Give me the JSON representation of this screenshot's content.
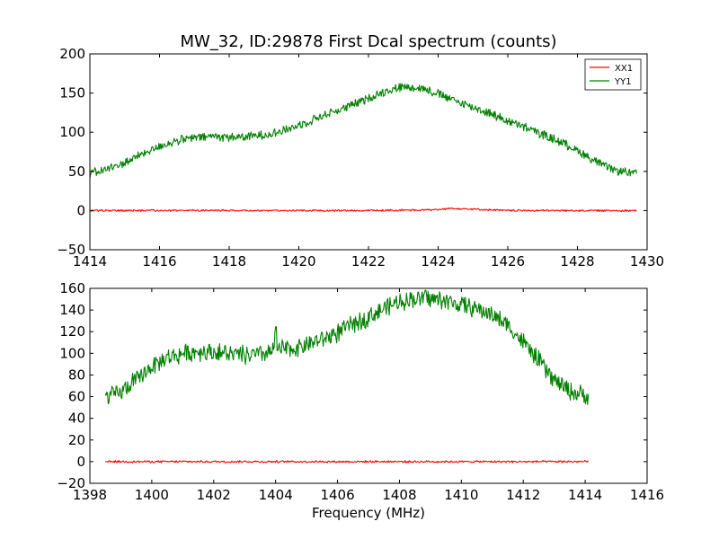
{
  "chart_data": [
    {
      "type": "line",
      "title": "MW_32, ID:29878 First Dcal spectrum (counts)",
      "xlabel": "",
      "ylabel": "",
      "xlim": [
        1414,
        1430
      ],
      "ylim": [
        -50,
        200
      ],
      "x_ticks": [
        1414,
        1416,
        1418,
        1420,
        1422,
        1424,
        1426,
        1428,
        1430
      ],
      "x_tick_labels": [
        "1414",
        "1416",
        "1418",
        "1420",
        "1422",
        "1424",
        "1426",
        "1428",
        "1430"
      ],
      "y_ticks": [
        -50,
        0,
        50,
        100,
        150,
        200
      ],
      "y_tick_labels": [
        "−50",
        "0",
        "50",
        "100",
        "150",
        "200"
      ],
      "grid": false,
      "legend": "top-right",
      "series": [
        {
          "name": "XX1",
          "color": "#ff0000",
          "x": [
            1414.0,
            1416.0,
            1418.0,
            1420.0,
            1422.0,
            1424.0,
            1424.35,
            1426.0,
            1428.0,
            1429.7
          ],
          "y": [
            0,
            0,
            0,
            0,
            0,
            1,
            3,
            0,
            0,
            0
          ]
        },
        {
          "name": "YY1",
          "color": "#008000",
          "x": [
            1414.0,
            1414.5,
            1415.0,
            1415.5,
            1416.0,
            1416.5,
            1417.0,
            1417.5,
            1418.0,
            1418.5,
            1419.0,
            1419.5,
            1420.0,
            1420.5,
            1421.0,
            1421.5,
            1422.0,
            1422.5,
            1423.0,
            1423.5,
            1424.0,
            1424.5,
            1425.0,
            1425.5,
            1426.0,
            1426.5,
            1427.0,
            1427.5,
            1428.0,
            1428.5,
            1429.0,
            1429.7
          ],
          "y": [
            47,
            53,
            61,
            72,
            82,
            89,
            93,
            95,
            94,
            94,
            97,
            101,
            109,
            118,
            126,
            134,
            143,
            153,
            158,
            157,
            149,
            140,
            132,
            124,
            114,
            106,
            97,
            88,
            77,
            63,
            52,
            47
          ]
        }
      ]
    },
    {
      "type": "line",
      "title": "",
      "xlabel": "Frequency (MHz)",
      "ylabel": "",
      "xlim": [
        1398,
        1416
      ],
      "ylim": [
        -20,
        160
      ],
      "x_ticks": [
        1398,
        1400,
        1402,
        1404,
        1406,
        1408,
        1410,
        1412,
        1414,
        1416
      ],
      "x_tick_labels": [
        "1398",
        "1400",
        "1402",
        "1404",
        "1406",
        "1408",
        "1410",
        "1412",
        "1414",
        "1416"
      ],
      "y_ticks": [
        -20,
        0,
        20,
        40,
        60,
        80,
        100,
        120,
        140,
        160
      ],
      "y_tick_labels": [
        "−20",
        "0",
        "20",
        "40",
        "60",
        "80",
        "100",
        "120",
        "140",
        "160"
      ],
      "grid": false,
      "legend": "",
      "series": [
        {
          "color": "#ff0000",
          "x": [
            1398.5,
            1400.0,
            1402.0,
            1404.0,
            1406.0,
            1408.0,
            1410.0,
            1412.0,
            1414.1
          ],
          "y": [
            0,
            0,
            0,
            0,
            0,
            0,
            0,
            0,
            0
          ]
        },
        {
          "color": "#008000",
          "x": [
            1398.5,
            1399.0,
            1399.5,
            1400.0,
            1400.5,
            1401.0,
            1401.5,
            1402.0,
            1402.5,
            1403.0,
            1403.5,
            1403.95,
            1404.0,
            1404.05,
            1404.5,
            1405.0,
            1405.5,
            1406.0,
            1406.5,
            1407.0,
            1407.5,
            1408.0,
            1408.5,
            1409.0,
            1409.5,
            1410.0,
            1410.5,
            1411.0,
            1411.5,
            1412.0,
            1412.5,
            1413.0,
            1413.5,
            1414.1
          ],
          "y": [
            60,
            64,
            75,
            88,
            96,
            100,
            102,
            101,
            99,
            98,
            99,
            102,
            130,
            103,
            104,
            108,
            113,
            119,
            127,
            134,
            141,
            148,
            151,
            151,
            148,
            145,
            141,
            136,
            126,
            110,
            93,
            75,
            65,
            60
          ]
        }
      ]
    }
  ]
}
